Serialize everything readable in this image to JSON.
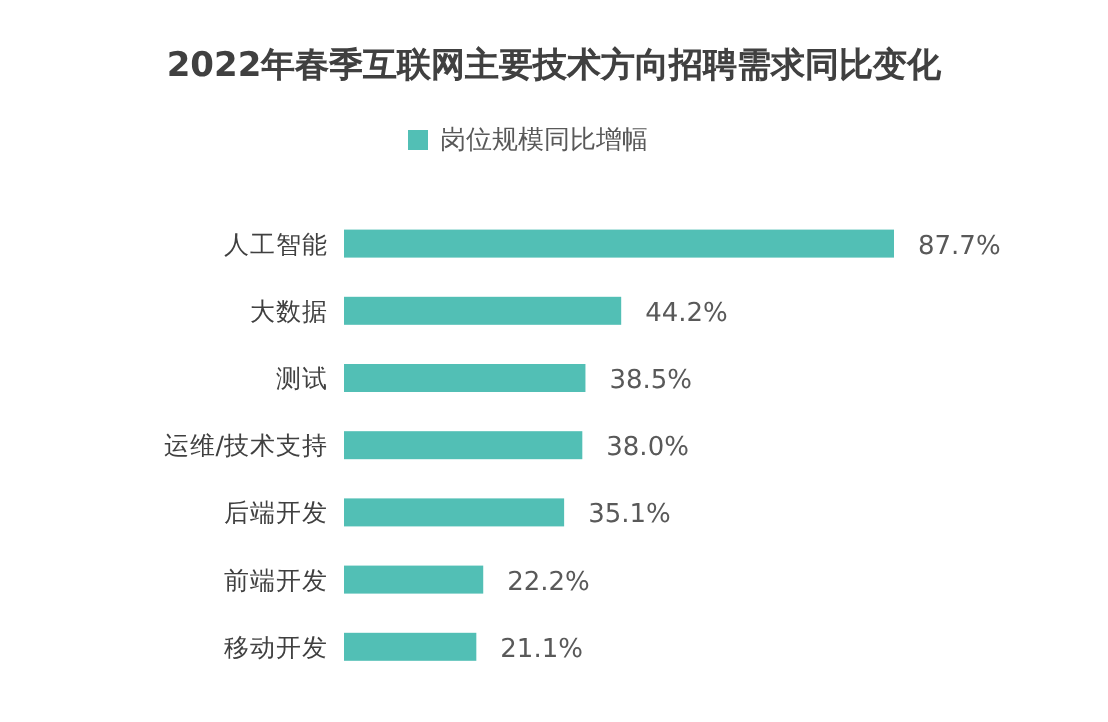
{
  "chart_data": {
    "type": "bar",
    "orientation": "horizontal",
    "title": "2022年春季互联网主要技术方向招聘需求同比变化",
    "categories": [
      "人工智能",
      "大数据",
      "测试",
      "运维/技术支持",
      "后端开发",
      "前端开发",
      "移动开发"
    ],
    "series": [
      {
        "name": "岗位规模同比增幅",
        "color": "#52bfb5",
        "values": [
          87.7,
          44.2,
          38.5,
          38.0,
          35.1,
          22.2,
          21.1
        ],
        "value_labels": [
          "87.7%",
          "44.2%",
          "38.5%",
          "38.0%",
          "35.1%",
          "22.2%",
          "21.1%"
        ]
      }
    ],
    "legend": "top"
  }
}
